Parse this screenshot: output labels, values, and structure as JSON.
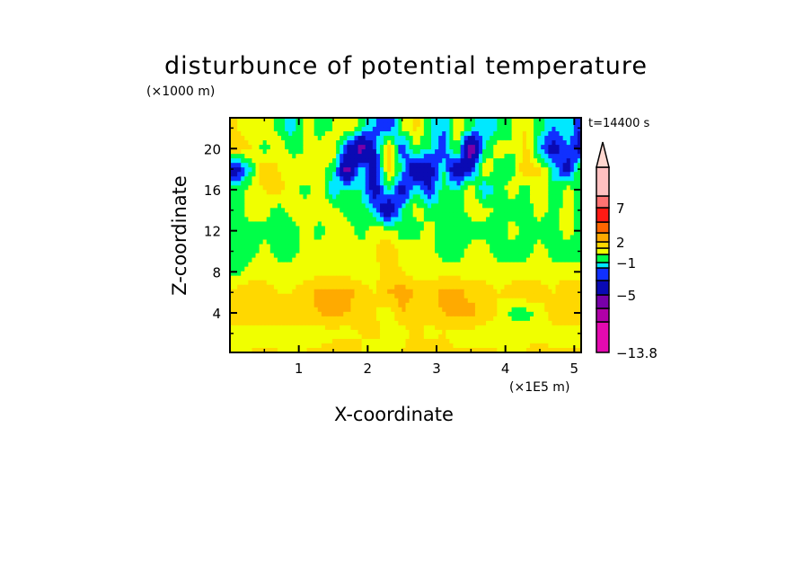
{
  "chart_data": {
    "type": "heatmap",
    "title": "disturbunce of potential temperature",
    "xlabel": "X-coordinate",
    "ylabel": "Z-coordinate",
    "x_unit": "(×1E5 m)",
    "y_unit": "(×1000 m)",
    "time_label": "t=14400 s",
    "xlim": [
      0.0,
      5.1
    ],
    "ylim": [
      0.15,
      23.0
    ],
    "xticks": [
      "1",
      "2",
      "3",
      "4",
      "5"
    ],
    "xtick_values": [
      1,
      2,
      3,
      4,
      5
    ],
    "yticks": [
      "4",
      "8",
      "12",
      "16",
      "20"
    ],
    "ytick_values": [
      4,
      8,
      12,
      16,
      20
    ],
    "colorbar": {
      "levels": [
        -13.8,
        -9,
        -7,
        -5,
        -3,
        -2,
        -1,
        0,
        1,
        2,
        3,
        5,
        7,
        9
      ],
      "labels": [
        {
          "text": "7",
          "value": 7
        },
        {
          "text": "2",
          "value": 2
        },
        {
          "text": "−1",
          "value": -1
        },
        {
          "text": "−5",
          "value": -5
        },
        {
          "text": "−13.8",
          "value": -13.8
        }
      ],
      "colors": [
        "#e40ab0",
        "#b000a8",
        "#7800a8",
        "#0a0ab4",
        "#1030ff",
        "#00e8ff",
        "#00ff48",
        "#f0ff00",
        "#ffd800",
        "#ffaa00",
        "#ff6600",
        "#ff1a14",
        "#ff7272",
        "#ffc0c0"
      ],
      "extend": "max"
    },
    "grid_x": [
      0.1,
      0.3,
      0.5,
      0.7,
      0.9,
      1.1,
      1.3,
      1.5,
      1.7,
      1.9,
      2.1,
      2.3,
      2.5,
      2.7,
      2.9,
      3.1,
      3.3,
      3.5,
      3.7,
      3.9,
      4.1,
      4.3,
      4.5,
      4.7,
      4.9,
      5.1
    ],
    "grid_z": [
      22,
      20,
      18,
      16,
      14,
      12,
      10,
      8,
      6,
      4,
      2,
      0.5
    ],
    "values": [
      [
        1,
        0.5,
        1,
        -0.5,
        -1.5,
        0.5,
        -0.5,
        0,
        1,
        -0.5,
        -2,
        -3,
        0,
        1.5,
        -1,
        -2,
        0.5,
        -0.5,
        -2,
        -1,
        0,
        1,
        -0.5,
        -2,
        -1,
        -3
      ],
      [
        2,
        1,
        -0.5,
        1,
        -0.5,
        0,
        0.5,
        1,
        -3,
        -6,
        -3,
        2,
        -3,
        0,
        -1,
        -3,
        0.5,
        -7,
        -1,
        0.5,
        0,
        1.5,
        -2,
        -4,
        -2,
        -4
      ],
      [
        -4,
        -1,
        2,
        1,
        0.5,
        1,
        0.5,
        -0.5,
        -6,
        -1,
        -4,
        1.5,
        -1,
        -5,
        -4,
        -1,
        -5,
        -3,
        1,
        -0.5,
        -0.5,
        2,
        1,
        -1,
        -4,
        0.5
      ],
      [
        -0.5,
        0.5,
        1,
        1.5,
        0.5,
        -0.5,
        1,
        -2,
        -0.5,
        -1,
        -4,
        -0.5,
        -4,
        -1,
        -3,
        -0.5,
        -1,
        1,
        -2,
        -0.5,
        0.5,
        -0.5,
        1,
        -1,
        0.5,
        -0.5
      ],
      [
        -0.5,
        0.5,
        0.5,
        -0.5,
        0.5,
        0.5,
        0.5,
        0.5,
        -0.5,
        -0.5,
        -1.5,
        -5,
        -1,
        0.5,
        -0.5,
        -0.5,
        -0.5,
        0.5,
        0.5,
        -0.5,
        -0.5,
        -0.5,
        0.5,
        -0.5,
        0.5,
        -0.5
      ],
      [
        -0.5,
        -0.5,
        -0.5,
        -0.5,
        -0.5,
        0.5,
        -0.5,
        0.5,
        0.5,
        -0.5,
        0.5,
        0.5,
        -0.5,
        -0.5,
        0.5,
        -0.5,
        -0.5,
        -0.5,
        -0.5,
        -0.5,
        0.5,
        -0.5,
        -0.5,
        -0.5,
        0.5,
        -0.5
      ],
      [
        -0.5,
        -0.5,
        0.5,
        -0.5,
        -0.5,
        0.5,
        0.5,
        0.5,
        0.5,
        0.5,
        1,
        2,
        0.5,
        0.5,
        0.5,
        -0.5,
        -0.5,
        0.5,
        0.5,
        -0.5,
        -0.5,
        -0.5,
        0.5,
        -0.5,
        -0.5,
        -0.5
      ],
      [
        -0.5,
        0.5,
        0.5,
        0.5,
        0.5,
        0.5,
        0.5,
        0.5,
        0.5,
        0.5,
        0.5,
        1.5,
        1,
        0.5,
        0.5,
        0.5,
        0.5,
        0.5,
        0.5,
        0.5,
        0.5,
        0.5,
        0.5,
        0.5,
        0.5,
        0.5
      ],
      [
        1.5,
        1.5,
        1.5,
        1,
        1,
        1.5,
        2.5,
        2.5,
        2.5,
        1.5,
        1,
        2,
        2.5,
        2,
        1.5,
        2.5,
        2.5,
        1.5,
        1.5,
        1,
        1.5,
        2,
        1.5,
        1,
        2,
        2
      ],
      [
        1.5,
        1.5,
        2,
        1.5,
        1,
        1.5,
        2,
        2.5,
        2,
        1.5,
        1,
        0.5,
        2,
        1.5,
        1.5,
        2,
        2.5,
        2.5,
        1.5,
        1,
        -0.5,
        -0.5,
        0.5,
        1.5,
        1,
        1.5
      ],
      [
        0.5,
        0.5,
        0.5,
        0.5,
        1,
        0.5,
        0.5,
        0.5,
        0.5,
        1,
        1.5,
        0.5,
        0.5,
        1.5,
        0.5,
        1,
        0.5,
        0.5,
        0.5,
        0.5,
        1,
        0.5,
        0.5,
        0.5,
        1,
        0.5
      ],
      [
        0.5,
        1,
        1,
        1,
        0.5,
        1,
        1,
        1.5,
        1.5,
        1,
        0.5,
        0.5,
        1,
        1.5,
        1.5,
        1.5,
        1,
        1,
        1,
        1,
        0.5,
        1,
        1.5,
        1,
        1,
        1
      ]
    ]
  }
}
